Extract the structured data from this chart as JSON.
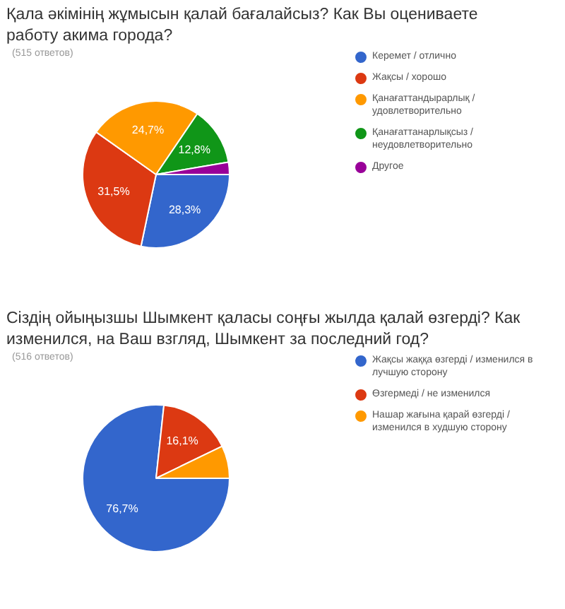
{
  "chart_data": [
    {
      "type": "pie",
      "title": "Қала әкімінің жұмысын қалай бағалайсыз? Как Вы оцениваете работу акима города?",
      "subtitle": "(515 ответов)",
      "categories": [
        "Керемет / отлично",
        "Жақсы / хорошо",
        "Қанағаттандырарлық / удовлетворительно",
        "Қанағаттанарлықсыз / неудовлетворительно",
        "Другое"
      ],
      "values": [
        28.3,
        31.5,
        24.7,
        12.8,
        2.7
      ],
      "colors": [
        "#3366cc",
        "#dc3912",
        "#ff9900",
        "#109618",
        "#990099"
      ],
      "value_labels": [
        "28,3%",
        "31,5%",
        "24,7%",
        "12,8%",
        null
      ],
      "legend": "right"
    },
    {
      "type": "pie",
      "title": "Сіздің ойыңызшы Шымкент қаласы соңғы жылда қалай өзгерді? Как изменился, на Ваш взгляд, Шымкент за последний год?",
      "subtitle": "(516 ответов)",
      "categories": [
        "Жақсы жаққа өзгерді / изменился в лучшую сторону",
        "Өзгермеді / не изменился",
        "Нашар жағына қарай өзгерді / изменился в худшую сторону"
      ],
      "values": [
        76.7,
        16.1,
        7.2
      ],
      "colors": [
        "#3366cc",
        "#dc3912",
        "#ff9900"
      ],
      "value_labels": [
        "76,7%",
        "16,1%",
        null
      ],
      "legend": "right"
    }
  ]
}
